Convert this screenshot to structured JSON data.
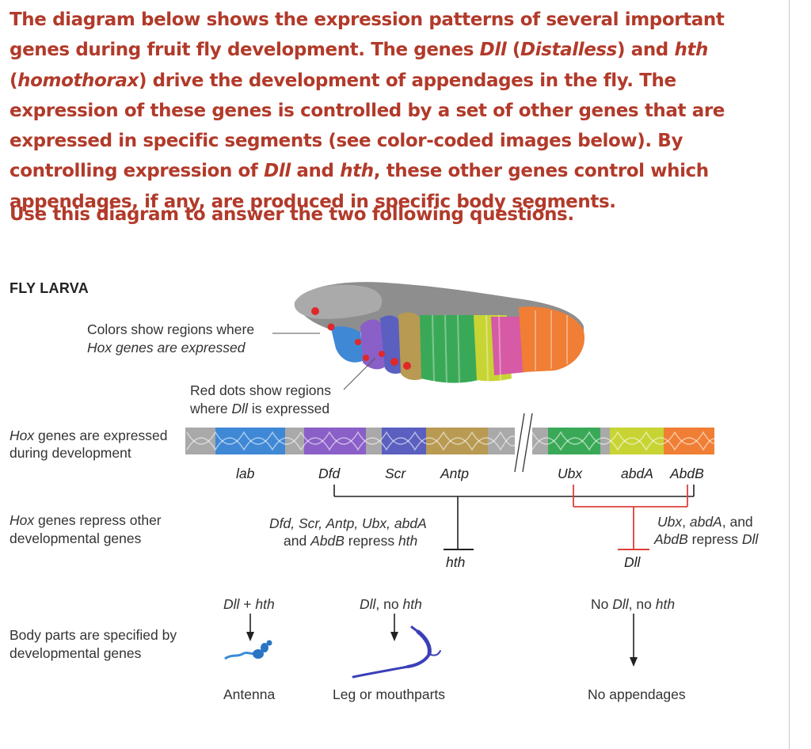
{
  "intro": {
    "part1": "The diagram below shows the expression patterns of several important genes during fruit fly development. The genes ",
    "dll": "Dll",
    "dll_full": "(Distalless)",
    "and": " and ",
    "hth": "hth",
    "hth_full": "(homothorax)",
    "part2": " drive the development of appendages in the fly. The expression of these genes is controlled by a set of other genes that are expressed in specific segments (see color-coded images below). By controlling expression of ",
    "part3": "Dll",
    "part4": " and ",
    "part5": "hth",
    "part6": ", these other genes control which appendages, if any, are produced in specific body segments."
  },
  "question": "Use this diagram to answer the two following questions.",
  "figure": {
    "title": "FLY LARVA",
    "colors_note_1": "Colors show regions where",
    "colors_note_2": "Hox genes are expressed",
    "red_dots_1": "Red dots show regions",
    "red_dots_2": "where Dll is expressed",
    "row_hox_expressed_1": "Hox genes are expressed",
    "row_hox_expressed_2": "during development",
    "row_repress_1": "Hox genes repress other",
    "row_repress_2": "developmental genes",
    "row_body_1": "Body parts are specified by",
    "row_body_2": "developmental genes",
    "genes": {
      "lab": "lab",
      "dfd": "Dfd",
      "scr": "Scr",
      "antp": "Antp",
      "ubx": "Ubx",
      "abda": "abdA",
      "abdb": "AbdB"
    },
    "repress_hth_1": "Dfd, Scr, Antp, Ubx, abdA",
    "repress_hth_2": "and AbdB repress hth",
    "hth_target": "hth",
    "repress_dll_1": "Ubx, abdA, and",
    "repress_dll_2": "AbdB repress Dll",
    "dll_target": "Dll",
    "outcome_antenna_condition": "Dll + hth",
    "outcome_leg_condition": "Dll, no hth",
    "outcome_none_condition": "No Dll, no hth",
    "outcome_antenna": "Antenna",
    "outcome_leg": "Leg or mouthparts",
    "outcome_none": "No appendages"
  },
  "colors": {
    "heading_red": "#b23a2a",
    "repress_red": "#e0403a",
    "lab": "#3f88d6",
    "dfd": "#8b5fc8",
    "scr": "#5a5fc0",
    "antp": "#b89a52",
    "ubx": "#3aa957",
    "abda": "#bfd43a",
    "abdb": "#f07e34",
    "dna_gray": "#a9a9a9"
  }
}
